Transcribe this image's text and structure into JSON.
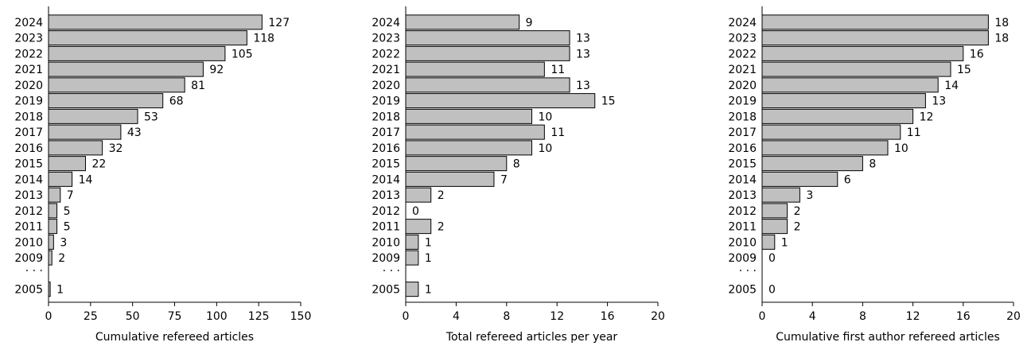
{
  "chart_data": [
    {
      "type": "bar",
      "orientation": "horizontal",
      "xlabel": "Cumulative refereed articles",
      "ylabel": "",
      "categories": [
        "2024",
        "2023",
        "2022",
        "2021",
        "2020",
        "2019",
        "2018",
        "2017",
        "2016",
        "2015",
        "2014",
        "2013",
        "2012",
        "2011",
        "2010",
        "2009",
        "...",
        "2005"
      ],
      "values": [
        127,
        118,
        105,
        92,
        81,
        68,
        53,
        43,
        32,
        22,
        14,
        7,
        5,
        5,
        3,
        2,
        null,
        1
      ],
      "xlim": [
        0,
        150
      ],
      "xticks": [
        0,
        25,
        50,
        75,
        100,
        125,
        150
      ],
      "bar_color": "#c0c0c0",
      "grid": false
    },
    {
      "type": "bar",
      "orientation": "horizontal",
      "xlabel": "Total refereed articles per year",
      "ylabel": "",
      "categories": [
        "2024",
        "2023",
        "2022",
        "2021",
        "2020",
        "2019",
        "2018",
        "2017",
        "2016",
        "2015",
        "2014",
        "2013",
        "2012",
        "2011",
        "2010",
        "2009",
        "...",
        "2005"
      ],
      "values": [
        9,
        13,
        13,
        11,
        13,
        15,
        10,
        11,
        10,
        8,
        7,
        2,
        0,
        2,
        1,
        1,
        null,
        1
      ],
      "xlim": [
        0,
        20
      ],
      "xticks": [
        0,
        4,
        8,
        12,
        16,
        20
      ],
      "bar_color": "#c0c0c0",
      "grid": false
    },
    {
      "type": "bar",
      "orientation": "horizontal",
      "xlabel": "Cumulative first author refereed articles",
      "ylabel": "",
      "categories": [
        "2024",
        "2023",
        "2022",
        "2021",
        "2020",
        "2019",
        "2018",
        "2017",
        "2016",
        "2015",
        "2014",
        "2013",
        "2012",
        "2011",
        "2010",
        "2009",
        "...",
        "2005"
      ],
      "values": [
        18,
        18,
        16,
        15,
        14,
        13,
        12,
        11,
        10,
        8,
        6,
        3,
        2,
        2,
        1,
        0,
        null,
        0
      ],
      "xlim": [
        0,
        20
      ],
      "xticks": [
        0,
        4,
        8,
        12,
        16,
        20
      ],
      "bar_color": "#c0c0c0",
      "grid": false
    }
  ]
}
